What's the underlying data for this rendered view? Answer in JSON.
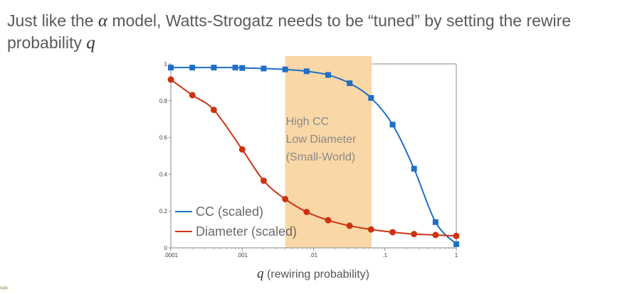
{
  "slide": {
    "title_part1": "Just like the ",
    "title_symbol_alpha": "α",
    "title_part2": " model, Watts-Strogatz needs to be “tuned” by setting the rewire",
    "title_part3": "probability ",
    "title_symbol_q": "q",
    "footer_text": "ogiu"
  },
  "chart_data": {
    "type": "line",
    "xscale": "log",
    "x_ticks": [
      0.0001,
      0.001,
      0.01,
      0.1,
      1
    ],
    "x_tick_labels": [
      ".0001",
      ".001",
      ".01",
      ".1",
      "1"
    ],
    "y_ticks": [
      0,
      0.2,
      0.4,
      0.6,
      0.8,
      1
    ],
    "y_tick_labels": [
      "0",
      "0.2",
      "0.4",
      "0.6",
      "0.8",
      "1"
    ],
    "xlim": [
      0.0001,
      1
    ],
    "ylim": [
      0,
      1
    ],
    "xlabel_symbol": "q",
    "xlabel_text": " (rewiring probability)",
    "highlight_region": {
      "x_range": [
        0.004,
        0.065
      ],
      "color": "#f9d7a6",
      "label_lines": [
        "High CC",
        "Low Diameter",
        "(Small-World)"
      ]
    },
    "legend_position": "bottom-left",
    "series": [
      {
        "name": "CC (scaled)",
        "color": "#1f6fc5",
        "marker": "square",
        "x": [
          0.0001,
          0.0002,
          0.0004,
          0.0008,
          0.001,
          0.002,
          0.004,
          0.008,
          0.016,
          0.032,
          0.064,
          0.128,
          0.256,
          0.512,
          1
        ],
        "y": [
          0.98,
          0.98,
          0.98,
          0.98,
          0.978,
          0.975,
          0.97,
          0.96,
          0.94,
          0.895,
          0.815,
          0.67,
          0.43,
          0.14,
          0.02
        ]
      },
      {
        "name": "Diameter (scaled)",
        "color": "#cc3311",
        "marker": "circle",
        "x": [
          0.0001,
          0.0002,
          0.0004,
          0.001,
          0.002,
          0.004,
          0.008,
          0.016,
          0.032,
          0.064,
          0.128,
          0.256,
          0.512,
          1
        ],
        "y": [
          0.915,
          0.83,
          0.75,
          0.535,
          0.365,
          0.265,
          0.195,
          0.15,
          0.12,
          0.1,
          0.085,
          0.075,
          0.07,
          0.065
        ]
      }
    ]
  }
}
